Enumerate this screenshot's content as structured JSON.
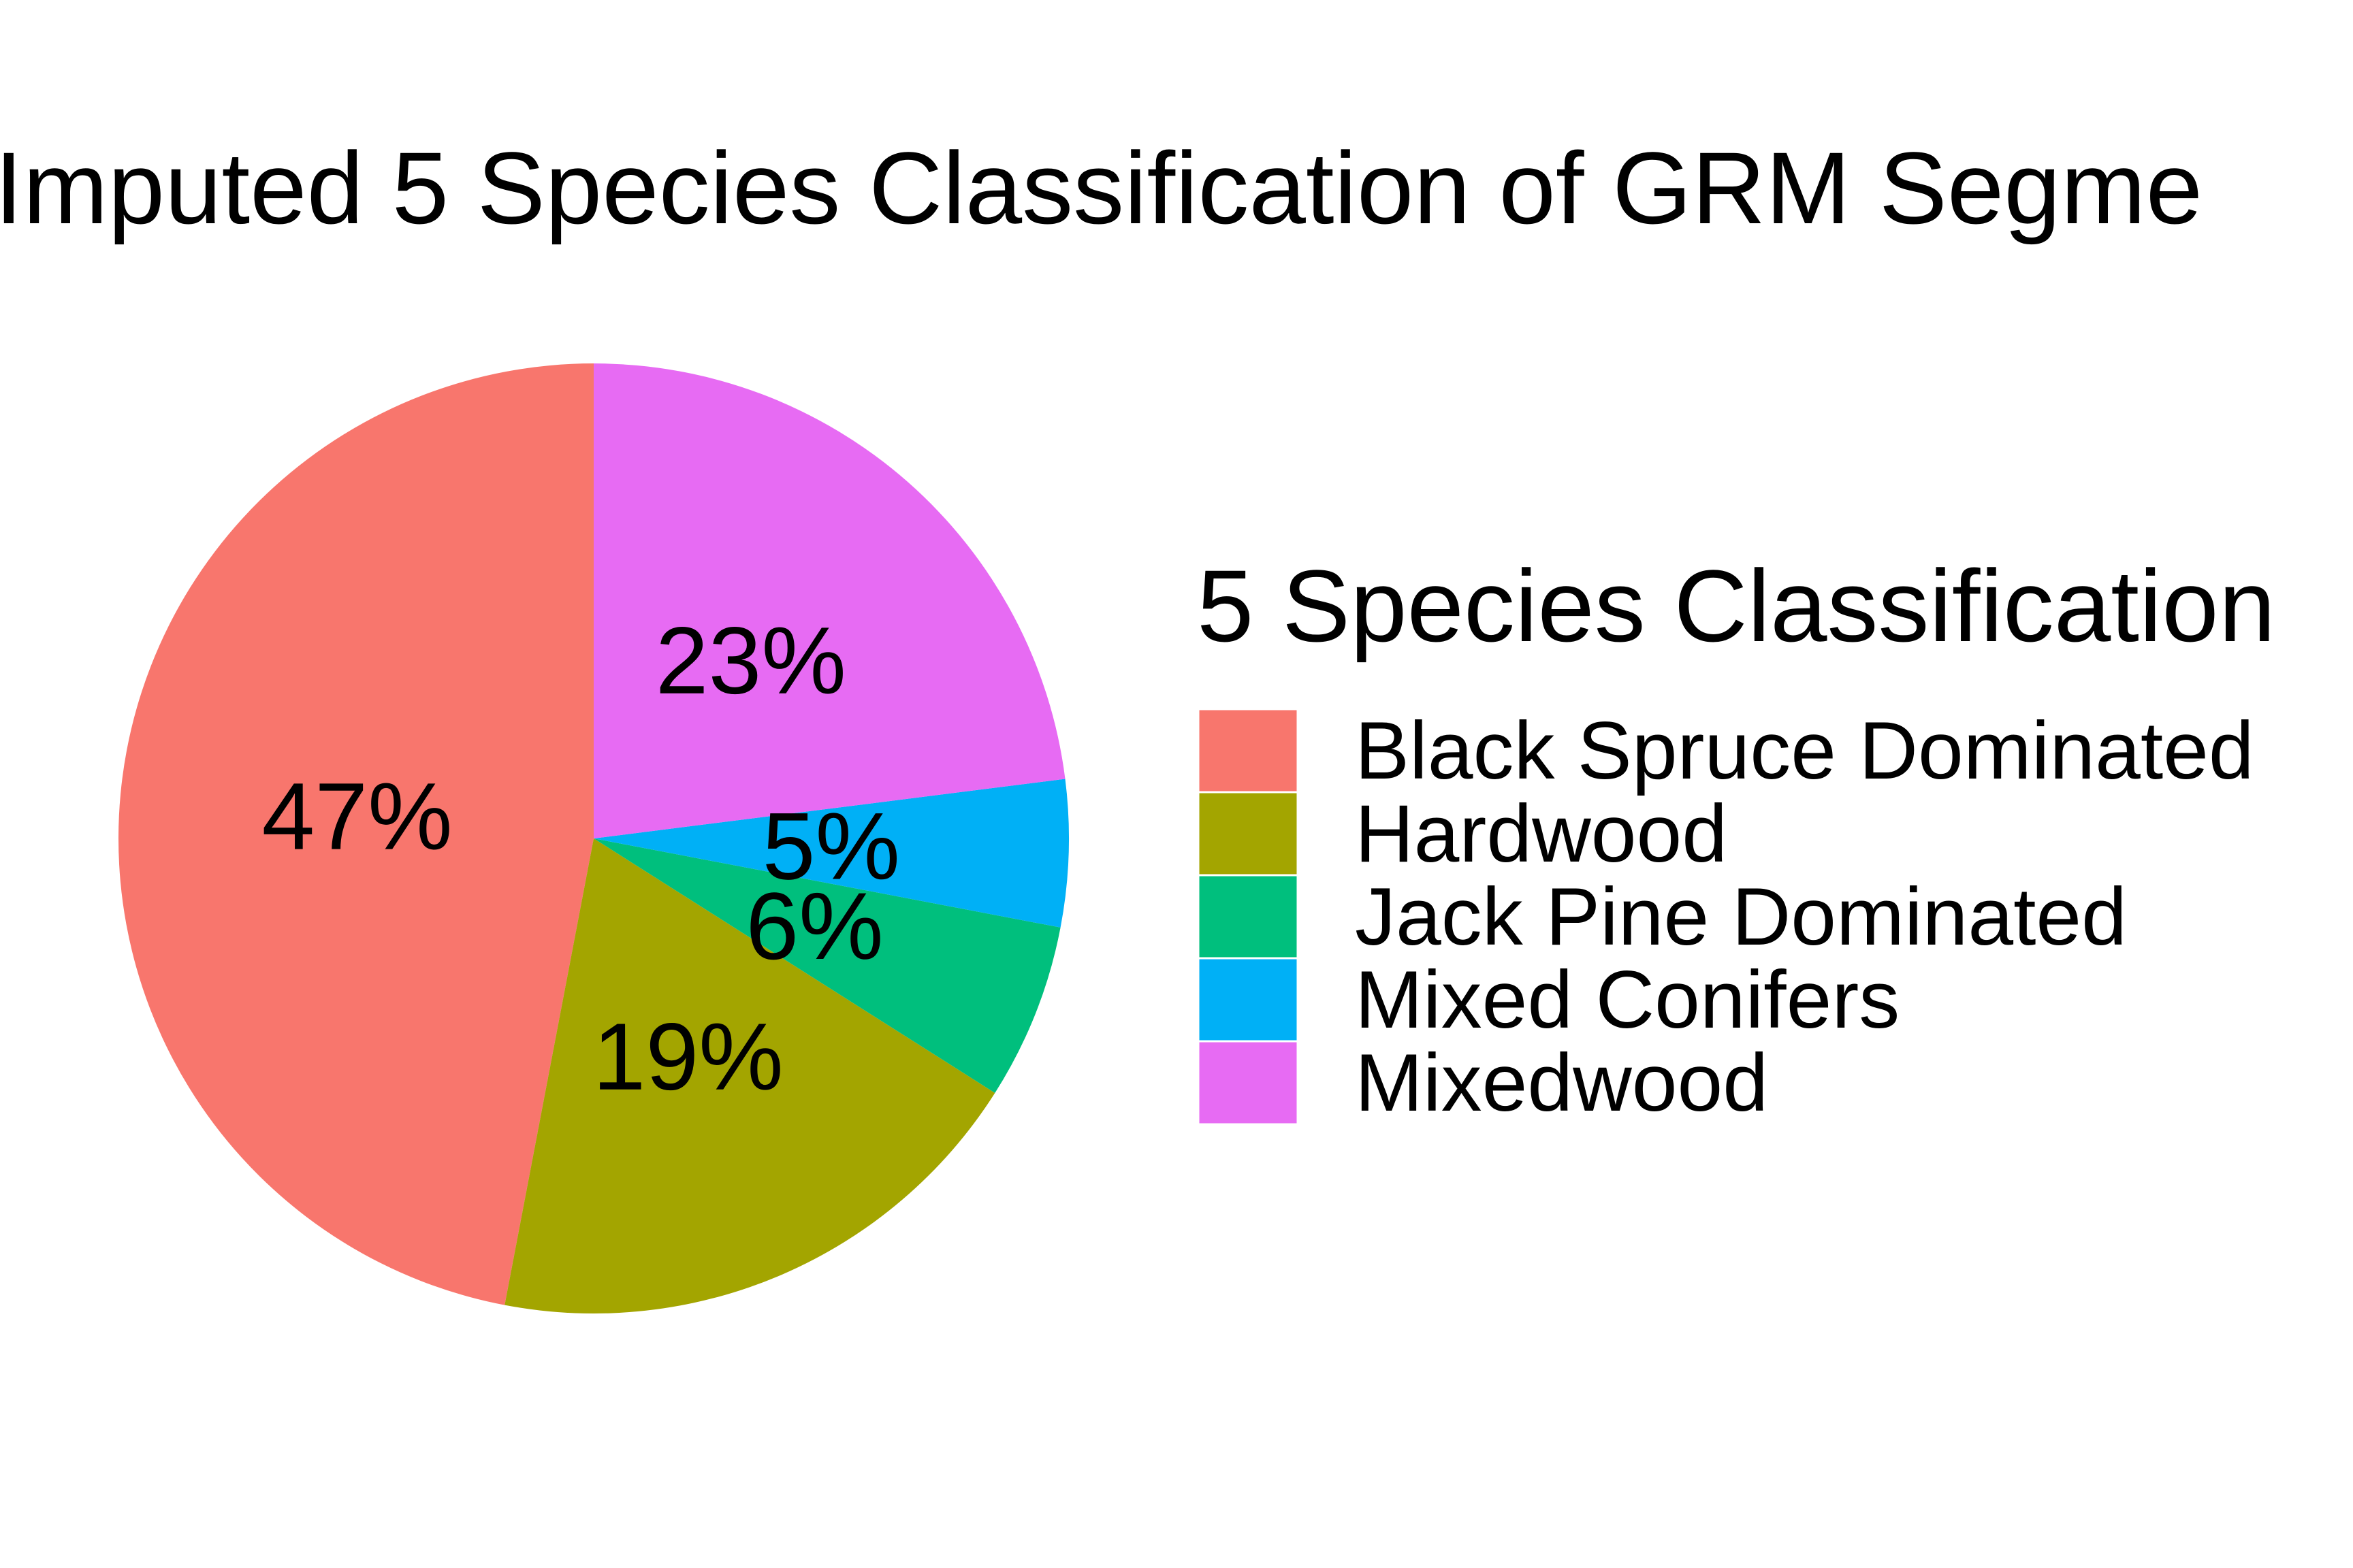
{
  "chart_data": {
    "type": "pie",
    "title": "Imputed 5 Species Classification of GRM Segme",
    "legend_title": "5 Species Classification",
    "legend_position": "right",
    "slices": [
      {
        "label": "Black Spruce Dominated",
        "value": 47,
        "display": "47%",
        "color": "#F8766D"
      },
      {
        "label": "Hardwood",
        "value": 19,
        "display": "19%",
        "color": "#A3A500"
      },
      {
        "label": "Jack Pine Dominated",
        "value": 6,
        "display": "6%",
        "color": "#00BF7D"
      },
      {
        "label": "Mixed Conifers",
        "value": 5,
        "display": "5%",
        "color": "#00B0F6"
      },
      {
        "label": "Mixedwood",
        "value": 23,
        "display": "23%",
        "color": "#E76BF3"
      }
    ]
  }
}
